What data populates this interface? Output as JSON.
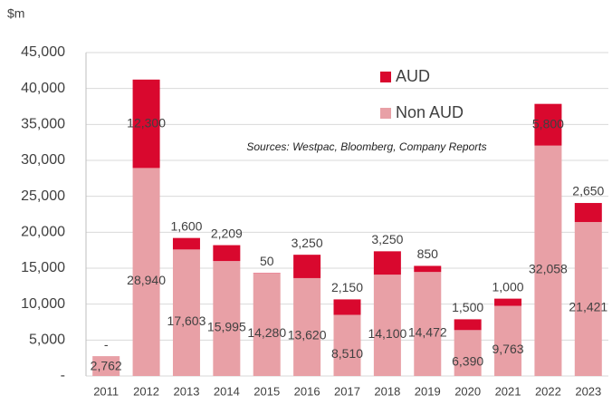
{
  "chart_data": {
    "type": "stacked_bar",
    "ylabel": "$m",
    "annotation": "Sources: Westpac, Bloomberg, Company Reports",
    "categories": [
      "2011",
      "2012",
      "2013",
      "2014",
      "2015",
      "2016",
      "2017",
      "2018",
      "2019",
      "2020",
      "2021",
      "2022",
      "2023"
    ],
    "series": [
      {
        "name": "Non AUD",
        "color": "#e8a0a6",
        "values": [
          2762,
          28940,
          17603,
          15995,
          14280,
          13620,
          8510,
          14100,
          14472,
          6390,
          9763,
          32058,
          21421
        ],
        "value_labels": [
          "2,762",
          "28,940",
          "17,603",
          "15,995",
          "14,280",
          "13,620",
          "8,510",
          "14,100",
          "14,472",
          "6,390",
          "9,763",
          "32,058",
          "21,421"
        ]
      },
      {
        "name": "AUD",
        "color": "#d9082e",
        "values": [
          0,
          12300,
          1600,
          2209,
          50,
          3250,
          2150,
          3250,
          850,
          1500,
          1000,
          5800,
          2650
        ],
        "value_labels": [
          "-",
          "12,300",
          "1,600",
          "2,209",
          "50",
          "3,250",
          "2,150",
          "3,250",
          "850",
          "1,500",
          "1,000",
          "5,800",
          "2,650"
        ]
      }
    ],
    "ylim": [
      0,
      45000
    ],
    "yticks": [
      {
        "value": 0,
        "label": "-"
      },
      {
        "value": 5000,
        "label": "5,000"
      },
      {
        "value": 10000,
        "label": "10,000"
      },
      {
        "value": 15000,
        "label": "15,000"
      },
      {
        "value": 20000,
        "label": "20,000"
      },
      {
        "value": 25000,
        "label": "25,000"
      },
      {
        "value": 30000,
        "label": "30,000"
      },
      {
        "value": 35000,
        "label": "35,000"
      },
      {
        "value": 40000,
        "label": "40,000"
      },
      {
        "value": 45000,
        "label": "45,000"
      }
    ],
    "grid": true
  }
}
